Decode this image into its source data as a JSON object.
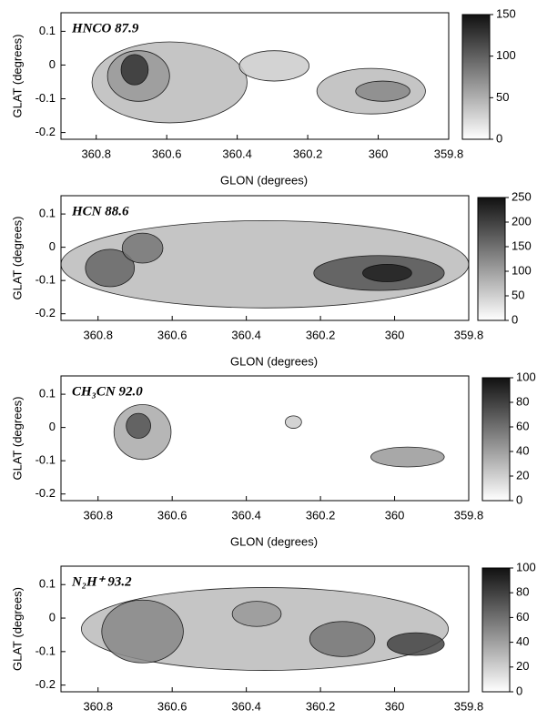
{
  "chart_data": [
    {
      "type": "contour",
      "title": "HNCO 87.9",
      "xlabel": "GLON (degrees)",
      "ylabel": "GLAT (degrees)",
      "xlim": [
        360.9,
        359.8
      ],
      "xticks": [
        360.8,
        360.6,
        360.4,
        360.2,
        360,
        359.8
      ],
      "ylim": [
        -0.22,
        0.155
      ],
      "yticks": [
        -0.2,
        -0.1,
        0,
        0.1
      ],
      "clim": [
        0,
        150
      ],
      "cticks": [
        0,
        50,
        100,
        150
      ]
    },
    {
      "type": "contour",
      "title": "HCN 88.6",
      "xlabel": "GLON (degrees)",
      "ylabel": "GLAT (degrees)",
      "xlim": [
        360.9,
        359.8
      ],
      "xticks": [
        360.8,
        360.6,
        360.4,
        360.2,
        360,
        359.8
      ],
      "ylim": [
        -0.22,
        0.155
      ],
      "yticks": [
        -0.2,
        -0.1,
        0,
        0.1
      ],
      "clim": [
        0,
        250
      ],
      "cticks": [
        0,
        50,
        100,
        150,
        200,
        250
      ]
    },
    {
      "type": "contour",
      "title": "CH₃CN 92.0",
      "xlabel": "GLON (degrees)",
      "ylabel": "GLAT (degrees)",
      "xlim": [
        360.9,
        359.8
      ],
      "xticks": [
        360.8,
        360.6,
        360.4,
        360.2,
        360,
        359.8
      ],
      "ylim": [
        -0.22,
        0.155
      ],
      "yticks": [
        -0.2,
        -0.1,
        0,
        0.1
      ],
      "clim": [
        0,
        100
      ],
      "cticks": [
        0,
        20,
        40,
        60,
        80,
        100
      ]
    },
    {
      "type": "contour",
      "title": "N₂H⁺ 93.2",
      "ylabel": "GLAT (degrees)",
      "xlim": [
        360.9,
        359.8
      ],
      "xticks": [
        360.8,
        360.6,
        360.4,
        360.2,
        360,
        359.8
      ],
      "ylim": [
        -0.22,
        0.155
      ],
      "yticks": [
        -0.2,
        -0.1,
        0,
        0.1
      ],
      "clim": [
        0,
        100
      ],
      "cticks": [
        0,
        20,
        40,
        60,
        80,
        100
      ]
    }
  ]
}
